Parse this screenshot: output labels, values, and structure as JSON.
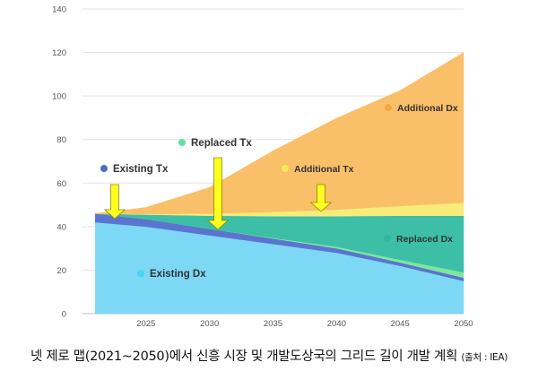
{
  "chart_data": {
    "type": "area",
    "stacked": true,
    "x": [
      2021,
      2025,
      2030,
      2035,
      2040,
      2045,
      2050
    ],
    "xticks": [
      "2025",
      "2030",
      "2035",
      "2040",
      "2045",
      "2050"
    ],
    "xlim": [
      2020,
      2050
    ],
    "yticks": [
      "0",
      "20",
      "40",
      "60",
      "80",
      "100",
      "120",
      "140"
    ],
    "ylim": [
      0,
      140
    ],
    "grid": "horizontal",
    "series": [
      {
        "name": "Existing Dx",
        "color": "#7dd8f5",
        "values": [
          42,
          40,
          36,
          32,
          28,
          22,
          15
        ]
      },
      {
        "name": "Existing Tx",
        "color": "#5a74cf",
        "values": [
          4,
          3.5,
          3,
          2.5,
          2,
          1.5,
          1.5
        ]
      },
      {
        "name": "Replaced Tx",
        "color": "#7ee6a0",
        "values": [
          0,
          0,
          0,
          0.3,
          0.8,
          1.3,
          2.5
        ]
      },
      {
        "name": "Replaced Dx",
        "color": "#3cbfa6",
        "values": [
          0,
          2,
          6,
          10,
          14,
          20.2,
          26
        ]
      },
      {
        "name": "Additional Tx",
        "color": "#f7ec7a",
        "values": [
          0,
          0.3,
          1,
          2,
          3,
          4.5,
          6
        ]
      },
      {
        "name": "Additional Dx",
        "color": "#f9bf69",
        "values": [
          0,
          3,
          12,
          28,
          42,
          53,
          69
        ]
      }
    ],
    "legend": [
      {
        "label": "Existing Tx",
        "color": "#4a6fc9"
      },
      {
        "label": "Replaced Tx",
        "color": "#5fe39a"
      },
      {
        "label": "Additional Tx",
        "color": "#f5e85c"
      },
      {
        "label": "Additional Dx",
        "color": "#f2a93b"
      },
      {
        "label": "Replaced Dx",
        "color": "#2fb79e"
      },
      {
        "label": "Existing Dx",
        "color": "#48d4f1"
      }
    ]
  },
  "caption": {
    "main": "넷 제로 맵(2021~2050)에서 신흥 시장 및 개발도상국의 그리드 길이 개발 계획",
    "source": "(출처 : IEA)"
  }
}
